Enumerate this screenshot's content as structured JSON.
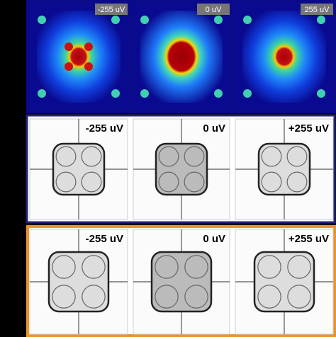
{
  "rows": [
    {
      "panels": [
        {
          "label": "-255 uV"
        },
        {
          "label": "0 uV"
        },
        {
          "label": "255 uV"
        }
      ]
    },
    {
      "panels": [
        {
          "label": "-255 uV"
        },
        {
          "label": "0 uV"
        },
        {
          "label": "+255 uV"
        }
      ]
    },
    {
      "panels": [
        {
          "label": "-255 uV"
        },
        {
          "label": "0 uV"
        },
        {
          "label": "+255 uV"
        }
      ]
    }
  ]
}
